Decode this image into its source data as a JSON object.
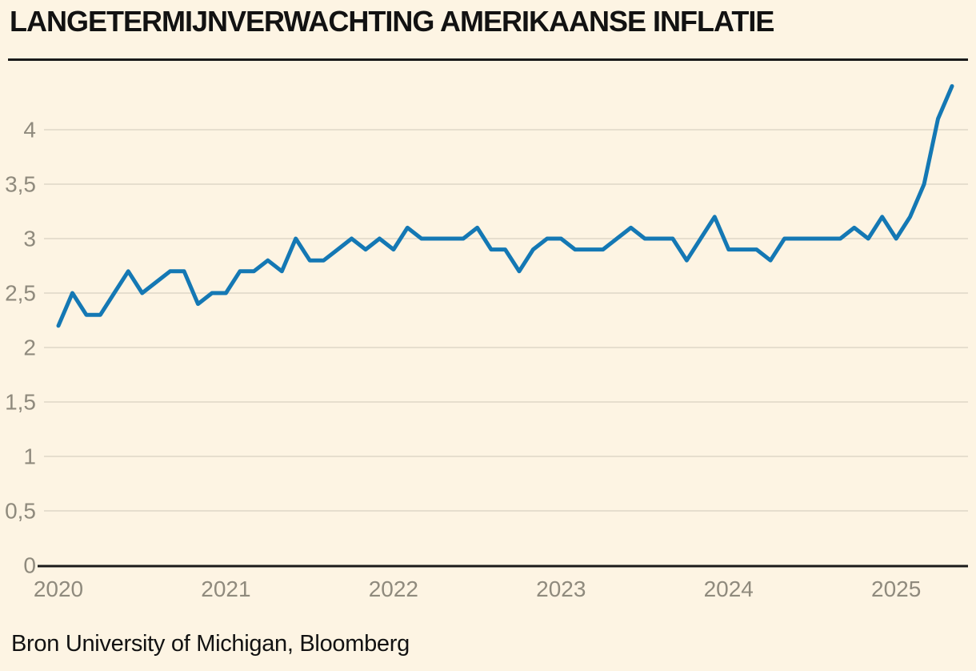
{
  "header": {
    "title": "LANGETERMIJNVERWACHTING AMERIKAANSE INFLATIE"
  },
  "footer": {
    "source": "Bron University of Michigan, Bloomberg"
  },
  "colors": {
    "background": "#fdf4e3",
    "line": "#1478b4",
    "grid": "#ded7c7",
    "tick_text": "#8f8a7d",
    "axis": "#1a1a1a",
    "text": "#121212"
  },
  "chart_data": {
    "type": "line",
    "title": "LANGETERMIJNVERWACHTING AMERIKAANSE INFLATIE",
    "source": "Bron University of Michigan, Bloomberg",
    "frequency": "monthly",
    "x_start": "2020-01",
    "x_end": "2025-05",
    "x_tick_labels": [
      "2020",
      "2021",
      "2022",
      "2023",
      "2024",
      "2025"
    ],
    "x_tick_month_index": [
      0,
      12,
      24,
      36,
      48,
      60
    ],
    "y_tick_values": [
      0,
      0.5,
      1,
      1.5,
      2,
      2.5,
      3,
      3.5,
      4
    ],
    "y_tick_labels": [
      "0",
      "0,5",
      "1",
      "1,5",
      "2",
      "2,5",
      "3",
      "3,5",
      "4"
    ],
    "ylim": [
      0,
      4.5
    ],
    "grid": "horizontal",
    "legend": "none",
    "xlabel": "",
    "ylabel": "",
    "series": [
      {
        "name": "Langetermijnverwachting Amerikaanse inflatie (%)",
        "values": [
          2.2,
          2.5,
          2.3,
          2.3,
          2.5,
          2.7,
          2.5,
          2.6,
          2.7,
          2.7,
          2.4,
          2.5,
          2.5,
          2.7,
          2.7,
          2.8,
          2.7,
          3.0,
          2.8,
          2.8,
          2.9,
          3.0,
          2.9,
          3.0,
          2.9,
          3.1,
          3.0,
          3.0,
          3.0,
          3.0,
          3.1,
          2.9,
          2.9,
          2.7,
          2.9,
          3.0,
          3.0,
          2.9,
          2.9,
          2.9,
          3.0,
          3.1,
          3.0,
          3.0,
          3.0,
          2.8,
          3.0,
          3.2,
          2.9,
          2.9,
          2.9,
          2.8,
          3.0,
          3.0,
          3.0,
          3.0,
          3.0,
          3.1,
          3.0,
          3.2,
          3.0,
          3.2,
          3.5,
          4.1,
          4.4
        ]
      }
    ]
  }
}
